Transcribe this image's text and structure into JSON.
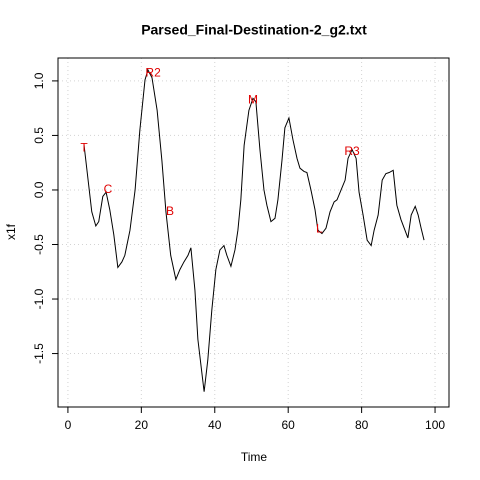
{
  "chart_data": {
    "type": "line",
    "title": "Parsed_Final-Destination-2_g2.txt",
    "x_label": "Time",
    "y_label": "x1f",
    "x": [
      4.4,
      6.5,
      7.6,
      8.4,
      9.5,
      10.4,
      11.4,
      12.5,
      13.6,
      14.7,
      15.5,
      16.9,
      18.3,
      19.6,
      21,
      21.8,
      22.9,
      24.3,
      25.6,
      26.7,
      28,
      29.4,
      30.5,
      31.6,
      32.7,
      33.5,
      34.6,
      35.4,
      37.1,
      38.1,
      39.2,
      40.3,
      41.4,
      42.5,
      43.3,
      44.4,
      45.5,
      46.3,
      47.1,
      48,
      49.3,
      50.4,
      51.2,
      52.3,
      53.4,
      54.2,
      55.3,
      56.4,
      57.2,
      58.3,
      59.1,
      60.2,
      61.3,
      62.4,
      63.2,
      64.3,
      65.1,
      66.2,
      67.3,
      68.1,
      69.2,
      70.3,
      71.4,
      72.5,
      73.3,
      74.4,
      75.5,
      76.3,
      77.4,
      78.5,
      79.3,
      80.4,
      81.5,
      82.6,
      83.4,
      84.5,
      85.6,
      86.6,
      87.5,
      88.6,
      89.6,
      90.7,
      91.6,
      92.6,
      93.5,
      94.6,
      95.4,
      96.2,
      97
    ],
    "series": [
      {
        "name": "x1f",
        "color": "#000000",
        "values": [
          0.41,
          -0.2,
          -0.33,
          -0.29,
          -0.06,
          -0.02,
          -0.18,
          -0.41,
          -0.71,
          -0.66,
          -0.6,
          -0.37,
          0,
          0.55,
          1.01,
          1.1,
          1.03,
          0.73,
          0.27,
          -0.2,
          -0.6,
          -0.82,
          -0.73,
          -0.66,
          -0.6,
          -0.53,
          -0.92,
          -1.37,
          -1.85,
          -1.56,
          -1.1,
          -0.73,
          -0.55,
          -0.51,
          -0.6,
          -0.7,
          -0.55,
          -0.37,
          -0.09,
          0.41,
          0.73,
          0.84,
          0.81,
          0.37,
          0,
          -0.14,
          -0.29,
          -0.26,
          -0.09,
          0.27,
          0.57,
          0.66,
          0.46,
          0.29,
          0.2,
          0.17,
          0.16,
          0,
          -0.18,
          -0.37,
          -0.4,
          -0.35,
          -0.2,
          -0.11,
          -0.09,
          0,
          0.09,
          0.29,
          0.37,
          0.29,
          -0.02,
          -0.23,
          -0.46,
          -0.51,
          -0.37,
          -0.23,
          0.09,
          0.15,
          0.16,
          0.18,
          -0.14,
          -0.27,
          -0.35,
          -0.44,
          -0.23,
          -0.15,
          -0.23,
          -0.35,
          -0.46
        ]
      }
    ],
    "annotations": [
      {
        "text": "T",
        "x": 4.4,
        "y": 0.38
      },
      {
        "text": "C",
        "x": 10.9,
        "y": 0
      },
      {
        "text": "R2",
        "x": 23.2,
        "y": 1.07
      },
      {
        "text": "B",
        "x": 27.8,
        "y": -0.2
      },
      {
        "text": "M",
        "x": 50.4,
        "y": 0.82
      },
      {
        "text": "L",
        "x": 68.5,
        "y": -0.36
      },
      {
        "text": "R3",
        "x": 77.4,
        "y": 0.35
      }
    ],
    "annotation_color": "#e00000",
    "xlim": [
      -2.7,
      103.8
    ],
    "ylim": [
      -1.99,
      1.21
    ],
    "xticks": [
      0,
      20,
      40,
      60,
      80,
      100
    ],
    "yticks": [
      {
        "value": -1.5,
        "label": "-1.5"
      },
      {
        "value": -1,
        "label": "-1.0"
      },
      {
        "value": -0.5,
        "label": "-0.5"
      },
      {
        "value": 0,
        "label": "0.0"
      },
      {
        "value": 0.5,
        "label": "0.5"
      },
      {
        "value": 1,
        "label": "1.0"
      }
    ],
    "grid": true
  }
}
